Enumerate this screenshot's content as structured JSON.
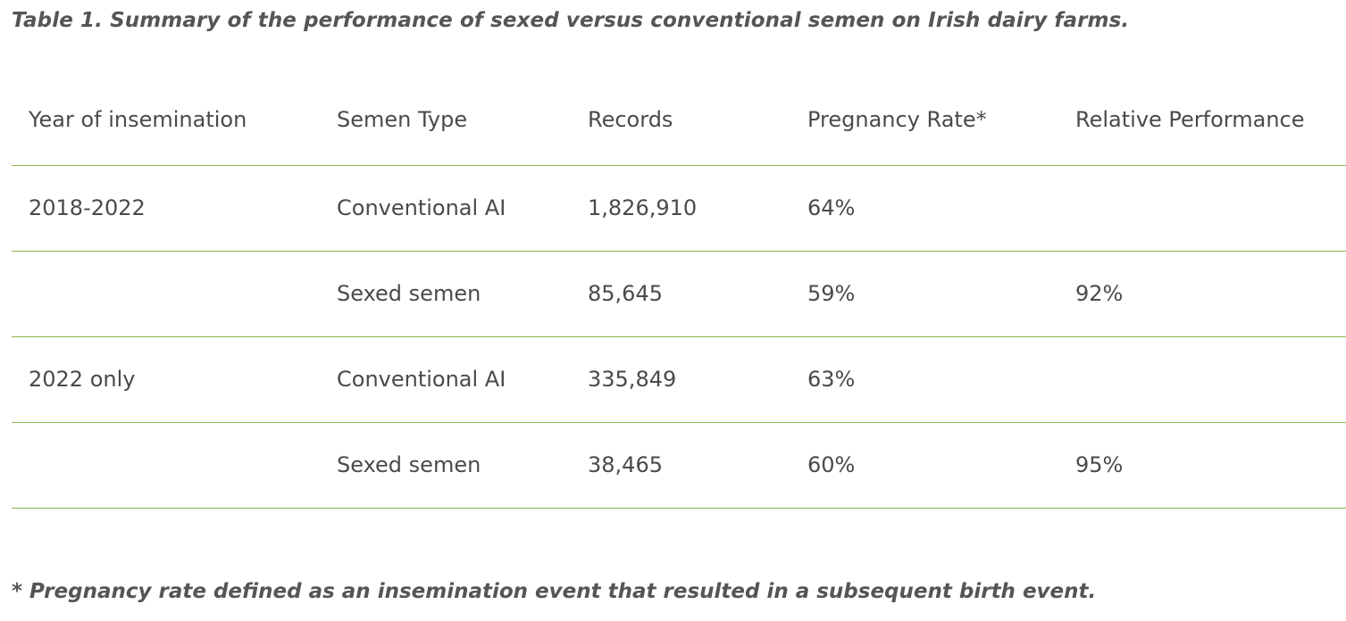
{
  "caption": "Table 1. Summary of the performance of sexed versus conventional semen on Irish dairy farms.",
  "table": {
    "headers": [
      "Year of insemination",
      "Semen Type",
      "Records",
      "Pregnancy Rate*",
      "Relative Performance"
    ],
    "rows": [
      [
        "2018-2022",
        "Conventional AI",
        "1,826,910",
        "64%",
        ""
      ],
      [
        "",
        "Sexed semen",
        "85,645",
        "59%",
        "92%"
      ],
      [
        "2022 only",
        "Conventional AI",
        "335,849",
        "63%",
        ""
      ],
      [
        "",
        "Sexed semen",
        "38,465",
        "60%",
        "95%"
      ]
    ]
  },
  "footnote": "* Pregnancy rate defined as an insemination event that resulted in a subsequent birth event.",
  "colors": {
    "rule": "#8db54b",
    "text": "#4a4a4a",
    "caption": "#555555"
  }
}
